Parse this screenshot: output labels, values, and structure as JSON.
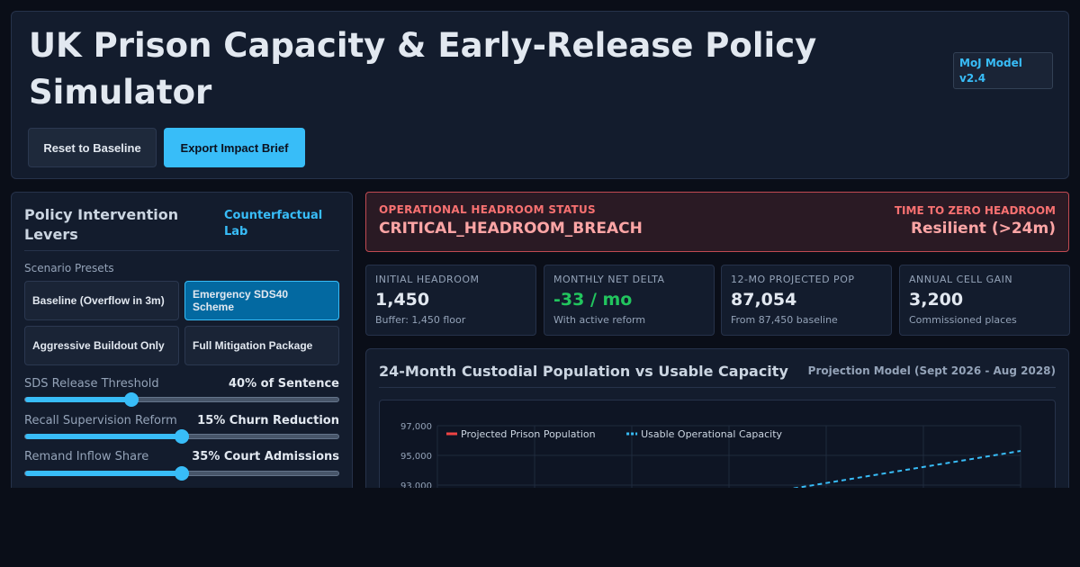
{
  "header": {
    "title": "UK Prison Capacity & Early-Release Policy Simulator",
    "badge": "MoJ Model v2.4",
    "reset_label": "Reset to Baseline",
    "export_label": "Export Impact Brief"
  },
  "levers": {
    "title": "Policy Intervention Levers",
    "link": "Counterfactual Lab",
    "presets_label": "Scenario Presets",
    "presets": [
      {
        "label": "Baseline (Overflow in 3m)",
        "active": false
      },
      {
        "label": "Emergency SDS40 Scheme",
        "active": true
      },
      {
        "label": "Aggressive Buildout Only",
        "active": false
      },
      {
        "label": "Full Mitigation Package",
        "active": false
      }
    ],
    "sliders": [
      {
        "label": "SDS Release Threshold",
        "value": "40% of Sentence",
        "level": 0.34
      },
      {
        "label": "Recall Supervision Reform",
        "value": "15% Churn Reduction",
        "level": 0.5
      },
      {
        "label": "Remand Inflow Share",
        "value": "35% Court Admissions",
        "level": 0.5
      }
    ]
  },
  "status": {
    "label": "OPERATIONAL HEADROOM STATUS",
    "value": "CRITICAL_HEADROOM_BREACH",
    "ttz_label": "TIME TO ZERO HEADROOM",
    "ttz_value": "Resilient (>24m)"
  },
  "kpis": [
    {
      "label": "INITIAL HEADROOM",
      "value": "1,450",
      "sub": "Buffer: 1,450 floor",
      "tone": "neutral"
    },
    {
      "label": "MONTHLY NET DELTA",
      "value": "-33 / mo",
      "sub": "With active reform",
      "tone": "good"
    },
    {
      "label": "12-MO PROJECTED POP",
      "value": "87,054",
      "sub": "From 87,450 baseline",
      "tone": "neutral"
    },
    {
      "label": "ANNUAL CELL GAIN",
      "value": "3,200",
      "sub": "Commissioned places",
      "tone": "neutral"
    }
  ],
  "chart": {
    "title": "24-Month Custodial Population vs Usable Capacity",
    "meta": "Projection Model (Sept 2026 - Aug 2028)"
  },
  "chart_data": {
    "type": "line",
    "series": [
      {
        "name": "Projected Prison Population",
        "color": "#ef4444",
        "style": "solid",
        "points": []
      },
      {
        "name": "Usable Operational Capacity",
        "color": "#38bdf8",
        "style": "dashed",
        "points": [
          [
            3.5,
            92600
          ],
          [
            6,
            95300
          ]
        ]
      }
    ],
    "yticks": [
      "97,000",
      "95,000",
      "93,000"
    ],
    "ytick_values": [
      97000,
      95000,
      93000
    ],
    "x_range": [
      0,
      6
    ],
    "grid": true,
    "legend": "top-left"
  }
}
